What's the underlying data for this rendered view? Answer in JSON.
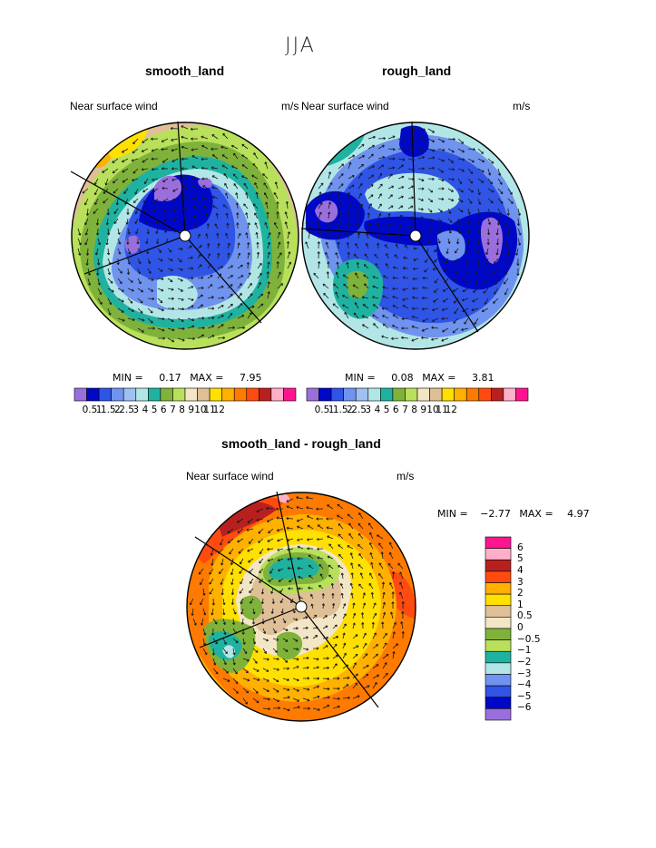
{
  "title": "JJA",
  "panels": [
    {
      "title": "smooth_land",
      "left_label": "Near surface wind",
      "right_label": "m/s",
      "min_label": "MIN =",
      "min": "0.17",
      "max_label": "MAX =",
      "max": "7.95"
    },
    {
      "title": "rough_land",
      "left_label": "Near surface wind",
      "right_label": "m/s",
      "min_label": "MIN =",
      "min": "0.08",
      "max_label": "MAX =",
      "max": "3.81"
    },
    {
      "title": "smooth_land - rough_land",
      "left_label": "Near surface wind",
      "right_label": "m/s",
      "min_label": "MIN =",
      "min": "−2.77",
      "max_label": "MAX =",
      "max": "4.97"
    }
  ],
  "colorbar_abs": {
    "colors": [
      "#9a6fdc",
      "#0008c8",
      "#2f54e6",
      "#6f93ee",
      "#9fc0f0",
      "#b2e6e6",
      "#20b2a0",
      "#7fb23a",
      "#b8e05a",
      "#f3e6c6",
      "#dfbf96",
      "#ffe000",
      "#ffb000",
      "#ff7a00",
      "#ff4a10",
      "#b82020",
      "#ffb0c8",
      "#ff1490"
    ],
    "labels": [
      "0.5",
      "1",
      "1.5",
      "2",
      "2.5",
      "3",
      "4",
      "5",
      "6",
      "7",
      "8",
      "9",
      "10",
      "11",
      "12"
    ]
  },
  "colorbar_diff": {
    "colors": [
      "#ff1490",
      "#ffb0c8",
      "#b82020",
      "#ff4a10",
      "#ffb000",
      "#ffe000",
      "#dfbf96",
      "#f3e6c6",
      "#7fb23a",
      "#b8e05a",
      "#20b2a0",
      "#b2e6e6",
      "#6f93ee",
      "#2f54e6",
      "#0008c8",
      "#9a6fdc"
    ],
    "labels": [
      "6",
      "5",
      "4",
      "3",
      "2",
      "1",
      "0.5",
      "0",
      "−0.5",
      "−1",
      "−2",
      "−3",
      "−4",
      "−5",
      "−6"
    ]
  }
}
